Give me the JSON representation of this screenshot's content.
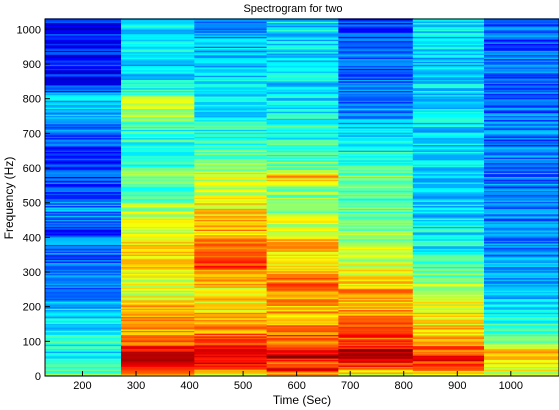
{
  "chart_data": {
    "type": "heatmap",
    "title": "Spectrogram for two",
    "xlabel": "Time (Sec)",
    "ylabel": "Frequency (Hz)",
    "xlim": [
      130,
      1090
    ],
    "ylim": [
      0,
      1030
    ],
    "xticks": [
      200,
      300,
      400,
      500,
      600,
      700,
      800,
      900,
      1000
    ],
    "yticks": [
      0,
      100,
      200,
      300,
      400,
      500,
      600,
      700,
      800,
      900,
      1000
    ],
    "colormap": "jet",
    "grid": false,
    "legend": "none",
    "value_range": [
      0,
      1
    ],
    "time_bins": [
      {
        "x0": 130,
        "x1": 272
      },
      {
        "x0": 272,
        "x1": 409
      },
      {
        "x0": 409,
        "x1": 544
      },
      {
        "x0": 544,
        "x1": 678
      },
      {
        "x0": 678,
        "x1": 817
      },
      {
        "x0": 817,
        "x1": 950
      },
      {
        "x0": 950,
        "x1": 1090
      }
    ],
    "columns": [
      [
        [
          0,
          0.47
        ],
        [
          30,
          0.42
        ],
        [
          60,
          0.36
        ],
        [
          100,
          0.4
        ],
        [
          140,
          0.34
        ],
        [
          180,
          0.36
        ],
        [
          220,
          0.26
        ],
        [
          260,
          0.22
        ],
        [
          300,
          0.24
        ],
        [
          340,
          0.22
        ],
        [
          380,
          0.26
        ],
        [
          420,
          0.2
        ],
        [
          450,
          0.22
        ],
        [
          480,
          0.28
        ],
        [
          510,
          0.2
        ],
        [
          550,
          0.21
        ],
        [
          600,
          0.17
        ],
        [
          640,
          0.15
        ],
        [
          680,
          0.19
        ],
        [
          720,
          0.24
        ],
        [
          760,
          0.32
        ],
        [
          800,
          0.34
        ],
        [
          830,
          0.18
        ],
        [
          870,
          0.15
        ],
        [
          920,
          0.14
        ],
        [
          960,
          0.16
        ],
        [
          1000,
          0.14
        ],
        [
          1030,
          0.14
        ]
      ],
      [
        [
          0,
          0.6
        ],
        [
          30,
          0.9
        ],
        [
          50,
          0.93
        ],
        [
          70,
          0.86
        ],
        [
          90,
          0.8
        ],
        [
          110,
          0.72
        ],
        [
          150,
          0.7
        ],
        [
          190,
          0.72
        ],
        [
          230,
          0.6
        ],
        [
          270,
          0.58
        ],
        [
          320,
          0.65
        ],
        [
          360,
          0.7
        ],
        [
          390,
          0.62
        ],
        [
          420,
          0.55
        ],
        [
          460,
          0.58
        ],
        [
          500,
          0.5
        ],
        [
          540,
          0.46
        ],
        [
          580,
          0.48
        ],
        [
          620,
          0.42
        ],
        [
          660,
          0.44
        ],
        [
          700,
          0.4
        ],
        [
          750,
          0.52
        ],
        [
          800,
          0.55
        ],
        [
          820,
          0.4
        ],
        [
          860,
          0.36
        ],
        [
          900,
          0.3
        ],
        [
          940,
          0.38
        ],
        [
          980,
          0.34
        ],
        [
          1030,
          0.36
        ]
      ],
      [
        [
          0,
          0.6
        ],
        [
          30,
          0.88
        ],
        [
          60,
          0.92
        ],
        [
          90,
          0.82
        ],
        [
          120,
          0.75
        ],
        [
          160,
          0.7
        ],
        [
          200,
          0.66
        ],
        [
          240,
          0.63
        ],
        [
          280,
          0.68
        ],
        [
          320,
          0.82
        ],
        [
          340,
          0.86
        ],
        [
          370,
          0.74
        ],
        [
          400,
          0.7
        ],
        [
          440,
          0.72
        ],
        [
          480,
          0.64
        ],
        [
          520,
          0.6
        ],
        [
          560,
          0.58
        ],
        [
          600,
          0.52
        ],
        [
          640,
          0.47
        ],
        [
          680,
          0.44
        ],
        [
          720,
          0.4
        ],
        [
          760,
          0.38
        ],
        [
          800,
          0.36
        ],
        [
          840,
          0.34
        ],
        [
          880,
          0.3
        ],
        [
          920,
          0.33
        ],
        [
          960,
          0.3
        ],
        [
          1000,
          0.28
        ],
        [
          1030,
          0.3
        ]
      ],
      [
        [
          0,
          0.58
        ],
        [
          20,
          0.92
        ],
        [
          40,
          0.8
        ],
        [
          60,
          0.94
        ],
        [
          90,
          0.8
        ],
        [
          120,
          0.78
        ],
        [
          160,
          0.72
        ],
        [
          200,
          0.7
        ],
        [
          240,
          0.74
        ],
        [
          270,
          0.78
        ],
        [
          300,
          0.68
        ],
        [
          340,
          0.66
        ],
        [
          380,
          0.7
        ],
        [
          420,
          0.62
        ],
        [
          460,
          0.55
        ],
        [
          500,
          0.5
        ],
        [
          540,
          0.52
        ],
        [
          580,
          0.7
        ],
        [
          600,
          0.48
        ],
        [
          640,
          0.44
        ],
        [
          680,
          0.4
        ],
        [
          720,
          0.42
        ],
        [
          760,
          0.38
        ],
        [
          800,
          0.36
        ],
        [
          840,
          0.34
        ],
        [
          880,
          0.35
        ],
        [
          920,
          0.33
        ],
        [
          960,
          0.36
        ],
        [
          1000,
          0.34
        ],
        [
          1030,
          0.34
        ]
      ],
      [
        [
          0,
          0.56
        ],
        [
          40,
          0.88
        ],
        [
          70,
          0.95
        ],
        [
          100,
          0.82
        ],
        [
          130,
          0.8
        ],
        [
          160,
          0.74
        ],
        [
          200,
          0.7
        ],
        [
          240,
          0.78
        ],
        [
          280,
          0.62
        ],
        [
          320,
          0.58
        ],
        [
          360,
          0.55
        ],
        [
          400,
          0.53
        ],
        [
          440,
          0.5
        ],
        [
          480,
          0.47
        ],
        [
          520,
          0.45
        ],
        [
          560,
          0.5
        ],
        [
          600,
          0.42
        ],
        [
          640,
          0.38
        ],
        [
          680,
          0.34
        ],
        [
          720,
          0.32
        ],
        [
          760,
          0.28
        ],
        [
          800,
          0.24
        ],
        [
          840,
          0.22
        ],
        [
          880,
          0.2
        ],
        [
          920,
          0.24
        ],
        [
          960,
          0.2
        ],
        [
          1000,
          0.18
        ],
        [
          1030,
          0.18
        ]
      ],
      [
        [
          0,
          0.55
        ],
        [
          20,
          0.82
        ],
        [
          50,
          0.85
        ],
        [
          80,
          0.76
        ],
        [
          110,
          0.7
        ],
        [
          150,
          0.66
        ],
        [
          200,
          0.62
        ],
        [
          250,
          0.55
        ],
        [
          300,
          0.45
        ],
        [
          350,
          0.4
        ],
        [
          400,
          0.36
        ],
        [
          450,
          0.35
        ],
        [
          500,
          0.34
        ],
        [
          550,
          0.34
        ],
        [
          600,
          0.35
        ],
        [
          650,
          0.34
        ],
        [
          700,
          0.34
        ],
        [
          750,
          0.34
        ],
        [
          800,
          0.34
        ],
        [
          850,
          0.33
        ],
        [
          900,
          0.34
        ],
        [
          950,
          0.34
        ],
        [
          1000,
          0.33
        ],
        [
          1030,
          0.33
        ]
      ],
      [
        [
          0,
          0.55
        ],
        [
          30,
          0.62
        ],
        [
          60,
          0.74
        ],
        [
          90,
          0.56
        ],
        [
          120,
          0.45
        ],
        [
          160,
          0.38
        ],
        [
          200,
          0.34
        ],
        [
          240,
          0.3
        ],
        [
          300,
          0.28
        ],
        [
          360,
          0.26
        ],
        [
          420,
          0.25
        ],
        [
          480,
          0.24
        ],
        [
          540,
          0.24
        ],
        [
          600,
          0.24
        ],
        [
          660,
          0.23
        ],
        [
          720,
          0.24
        ],
        [
          780,
          0.23
        ],
        [
          840,
          0.22
        ],
        [
          900,
          0.23
        ],
        [
          960,
          0.22
        ],
        [
          1030,
          0.22
        ]
      ]
    ]
  }
}
